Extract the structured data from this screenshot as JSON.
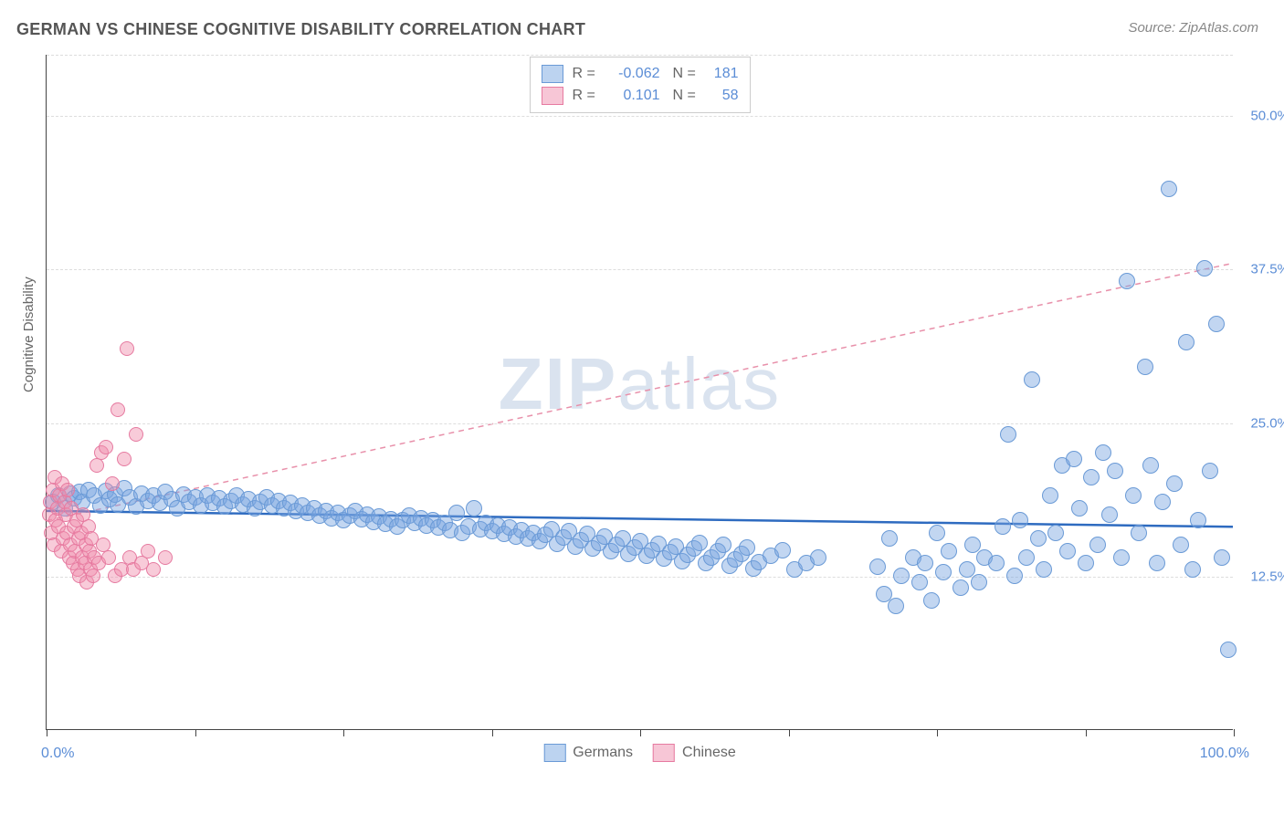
{
  "title": "GERMAN VS CHINESE COGNITIVE DISABILITY CORRELATION CHART",
  "source": "Source: ZipAtlas.com",
  "watermark": "ZIPatlas",
  "axes": {
    "y_title": "Cognitive Disability",
    "x_min_label": "0.0%",
    "x_max_label": "100.0%",
    "xlim": [
      0,
      100
    ],
    "ylim": [
      0,
      55
    ],
    "y_ticks": [
      {
        "v": 12.5,
        "label": "12.5%"
      },
      {
        "v": 25.0,
        "label": "25.0%"
      },
      {
        "v": 37.5,
        "label": "37.5%"
      },
      {
        "v": 50.0,
        "label": "50.0%"
      }
    ],
    "x_ticks": [
      0,
      12.5,
      25,
      37.5,
      50,
      62.5,
      75,
      87.5,
      100
    ],
    "grid_color": "#dddddd",
    "axis_color": "#444444"
  },
  "series": {
    "germans": {
      "label": "Germans",
      "color_fill": "rgba(120,165,225,0.45)",
      "color_stroke": "#6a9ad6",
      "swatch_fill": "#bcd3f0",
      "swatch_stroke": "#6a9ad6",
      "R": "-0.062",
      "N": "181",
      "marker_radius": 9,
      "trend": {
        "x1": 0,
        "y1": 17.8,
        "x2": 100,
        "y2": 16.5,
        "stroke": "#2e6bc0",
        "width": 2.5,
        "dash": "none"
      }
    },
    "chinese": {
      "label": "Chinese",
      "color_fill": "rgba(240,140,170,0.45)",
      "color_stroke": "#e67aa0",
      "swatch_fill": "#f7c6d6",
      "swatch_stroke": "#e67aa0",
      "R": "0.101",
      "N": "58",
      "marker_radius": 8,
      "trend": {
        "x1": 0,
        "y1": 17.0,
        "x2": 100,
        "y2": 38.0,
        "stroke": "#e890aa",
        "width": 1.5,
        "dash": "6,5"
      }
    }
  },
  "legend_labels": {
    "R": "R =",
    "N": "N ="
  },
  "points_germans": [
    [
      0.5,
      18.5
    ],
    [
      1,
      19
    ],
    [
      1.5,
      18
    ],
    [
      2,
      19.2
    ],
    [
      2.3,
      18.8
    ],
    [
      2.8,
      19.3
    ],
    [
      3,
      18.5
    ],
    [
      3.5,
      19.5
    ],
    [
      4,
      19
    ],
    [
      4.5,
      18.2
    ],
    [
      5,
      19.4
    ],
    [
      5.3,
      18.7
    ],
    [
      5.8,
      19.1
    ],
    [
      6,
      18.3
    ],
    [
      6.5,
      19.6
    ],
    [
      7,
      18.9
    ],
    [
      7.5,
      18.1
    ],
    [
      8,
      19.2
    ],
    [
      8.5,
      18.6
    ],
    [
      9,
      19.0
    ],
    [
      9.5,
      18.4
    ],
    [
      10,
      19.3
    ],
    [
      10.5,
      18.7
    ],
    [
      11,
      18.0
    ],
    [
      11.5,
      19.1
    ],
    [
      12,
      18.5
    ],
    [
      12.5,
      18.9
    ],
    [
      13,
      18.2
    ],
    [
      13.5,
      19.0
    ],
    [
      14,
      18.4
    ],
    [
      14.5,
      18.8
    ],
    [
      15,
      18.1
    ],
    [
      15.5,
      18.6
    ],
    [
      16,
      19.0
    ],
    [
      16.5,
      18.3
    ],
    [
      17,
      18.7
    ],
    [
      17.5,
      18.0
    ],
    [
      18,
      18.5
    ],
    [
      18.5,
      18.9
    ],
    [
      19,
      18.2
    ],
    [
      19.5,
      18.6
    ],
    [
      20,
      18.0
    ],
    [
      20.5,
      18.4
    ],
    [
      21,
      17.8
    ],
    [
      21.5,
      18.2
    ],
    [
      22,
      17.6
    ],
    [
      22.5,
      18.0
    ],
    [
      23,
      17.4
    ],
    [
      23.5,
      17.8
    ],
    [
      24,
      17.2
    ],
    [
      24.5,
      17.6
    ],
    [
      25,
      17.0
    ],
    [
      25.5,
      17.4
    ],
    [
      26,
      17.8
    ],
    [
      26.5,
      17.1
    ],
    [
      27,
      17.5
    ],
    [
      27.5,
      16.9
    ],
    [
      28,
      17.3
    ],
    [
      28.5,
      16.7
    ],
    [
      29,
      17.1
    ],
    [
      29.5,
      16.5
    ],
    [
      30,
      17.0
    ],
    [
      30.5,
      17.4
    ],
    [
      31,
      16.8
    ],
    [
      31.5,
      17.2
    ],
    [
      32,
      16.6
    ],
    [
      32.5,
      17.0
    ],
    [
      33,
      16.4
    ],
    [
      33.5,
      16.8
    ],
    [
      34,
      16.2
    ],
    [
      34.5,
      17.6
    ],
    [
      35,
      16.0
    ],
    [
      35.5,
      16.5
    ],
    [
      36,
      18.0
    ],
    [
      36.5,
      16.3
    ],
    [
      37,
      16.8
    ],
    [
      37.5,
      16.1
    ],
    [
      38,
      16.6
    ],
    [
      38.5,
      15.9
    ],
    [
      39,
      16.4
    ],
    [
      39.5,
      15.7
    ],
    [
      40,
      16.2
    ],
    [
      40.5,
      15.5
    ],
    [
      41,
      16.0
    ],
    [
      41.5,
      15.3
    ],
    [
      42,
      15.8
    ],
    [
      42.5,
      16.3
    ],
    [
      43,
      15.1
    ],
    [
      43.5,
      15.6
    ],
    [
      44,
      16.1
    ],
    [
      44.5,
      14.9
    ],
    [
      45,
      15.4
    ],
    [
      45.5,
      15.9
    ],
    [
      46,
      14.7
    ],
    [
      46.5,
      15.2
    ],
    [
      47,
      15.7
    ],
    [
      47.5,
      14.5
    ],
    [
      48,
      15.0
    ],
    [
      48.5,
      15.5
    ],
    [
      49,
      14.3
    ],
    [
      49.5,
      14.8
    ],
    [
      50,
      15.3
    ],
    [
      50.5,
      14.1
    ],
    [
      51,
      14.6
    ],
    [
      51.5,
      15.1
    ],
    [
      52,
      13.9
    ],
    [
      52.5,
      14.4
    ],
    [
      53,
      14.9
    ],
    [
      53.5,
      13.7
    ],
    [
      54,
      14.2
    ],
    [
      54.5,
      14.7
    ],
    [
      55,
      15.2
    ],
    [
      55.5,
      13.5
    ],
    [
      56,
      14.0
    ],
    [
      56.5,
      14.5
    ],
    [
      57,
      15.0
    ],
    [
      57.5,
      13.3
    ],
    [
      58,
      13.8
    ],
    [
      58.5,
      14.3
    ],
    [
      59,
      14.8
    ],
    [
      59.5,
      13.1
    ],
    [
      60,
      13.6
    ],
    [
      61,
      14.1
    ],
    [
      62,
      14.6
    ],
    [
      63,
      13.0
    ],
    [
      64,
      13.5
    ],
    [
      65,
      14.0
    ],
    [
      70,
      13.2
    ],
    [
      70.5,
      11.0
    ],
    [
      71,
      15.5
    ],
    [
      71.5,
      10.0
    ],
    [
      72,
      12.5
    ],
    [
      73,
      14.0
    ],
    [
      73.5,
      12.0
    ],
    [
      74,
      13.5
    ],
    [
      74.5,
      10.5
    ],
    [
      75,
      16.0
    ],
    [
      75.5,
      12.8
    ],
    [
      76,
      14.5
    ],
    [
      77,
      11.5
    ],
    [
      77.5,
      13.0
    ],
    [
      78,
      15.0
    ],
    [
      78.5,
      12.0
    ],
    [
      79,
      14.0
    ],
    [
      80,
      13.5
    ],
    [
      80.5,
      16.5
    ],
    [
      81,
      24.0
    ],
    [
      81.5,
      12.5
    ],
    [
      82,
      17.0
    ],
    [
      82.5,
      14.0
    ],
    [
      83,
      28.5
    ],
    [
      83.5,
      15.5
    ],
    [
      84,
      13.0
    ],
    [
      84.5,
      19.0
    ],
    [
      85,
      16.0
    ],
    [
      85.5,
      21.5
    ],
    [
      86,
      14.5
    ],
    [
      86.5,
      22.0
    ],
    [
      87,
      18.0
    ],
    [
      87.5,
      13.5
    ],
    [
      88,
      20.5
    ],
    [
      88.5,
      15.0
    ],
    [
      89,
      22.5
    ],
    [
      89.5,
      17.5
    ],
    [
      90,
      21.0
    ],
    [
      90.5,
      14.0
    ],
    [
      91,
      36.5
    ],
    [
      91.5,
      19.0
    ],
    [
      92,
      16.0
    ],
    [
      92.5,
      29.5
    ],
    [
      93,
      21.5
    ],
    [
      93.5,
      13.5
    ],
    [
      94,
      18.5
    ],
    [
      94.5,
      44.0
    ],
    [
      95,
      20.0
    ],
    [
      95.5,
      15.0
    ],
    [
      96,
      31.5
    ],
    [
      96.5,
      13.0
    ],
    [
      97,
      17.0
    ],
    [
      97.5,
      37.5
    ],
    [
      98,
      21.0
    ],
    [
      98.5,
      33.0
    ],
    [
      99,
      14.0
    ],
    [
      99.5,
      6.5
    ]
  ],
  "points_chinese": [
    [
      0.2,
      17.5
    ],
    [
      0.3,
      18.5
    ],
    [
      0.4,
      16.0
    ],
    [
      0.5,
      19.5
    ],
    [
      0.6,
      15.0
    ],
    [
      0.7,
      20.5
    ],
    [
      0.8,
      17.0
    ],
    [
      0.9,
      18.0
    ],
    [
      1.0,
      16.5
    ],
    [
      1.1,
      19.0
    ],
    [
      1.2,
      14.5
    ],
    [
      1.3,
      20.0
    ],
    [
      1.4,
      15.5
    ],
    [
      1.5,
      18.5
    ],
    [
      1.6,
      17.5
    ],
    [
      1.7,
      16.0
    ],
    [
      1.8,
      19.5
    ],
    [
      1.9,
      14.0
    ],
    [
      2.0,
      15.0
    ],
    [
      2.1,
      18.0
    ],
    [
      2.2,
      13.5
    ],
    [
      2.3,
      16.5
    ],
    [
      2.4,
      14.5
    ],
    [
      2.5,
      17.0
    ],
    [
      2.6,
      13.0
    ],
    [
      2.7,
      15.5
    ],
    [
      2.8,
      12.5
    ],
    [
      2.9,
      16.0
    ],
    [
      3.0,
      14.0
    ],
    [
      3.1,
      17.5
    ],
    [
      3.2,
      13.5
    ],
    [
      3.3,
      15.0
    ],
    [
      3.4,
      12.0
    ],
    [
      3.5,
      16.5
    ],
    [
      3.6,
      14.5
    ],
    [
      3.7,
      13.0
    ],
    [
      3.8,
      15.5
    ],
    [
      3.9,
      12.5
    ],
    [
      4.0,
      14.0
    ],
    [
      4.2,
      21.5
    ],
    [
      4.4,
      13.5
    ],
    [
      4.6,
      22.5
    ],
    [
      4.8,
      15.0
    ],
    [
      5.0,
      23.0
    ],
    [
      5.2,
      14.0
    ],
    [
      5.5,
      20.0
    ],
    [
      5.8,
      12.5
    ],
    [
      6.0,
      26.0
    ],
    [
      6.3,
      13.0
    ],
    [
      6.5,
      22.0
    ],
    [
      6.8,
      31.0
    ],
    [
      7.0,
      14.0
    ],
    [
      7.3,
      13.0
    ],
    [
      7.5,
      24.0
    ],
    [
      8.0,
      13.5
    ],
    [
      8.5,
      14.5
    ],
    [
      9.0,
      13.0
    ],
    [
      10.0,
      14.0
    ]
  ]
}
